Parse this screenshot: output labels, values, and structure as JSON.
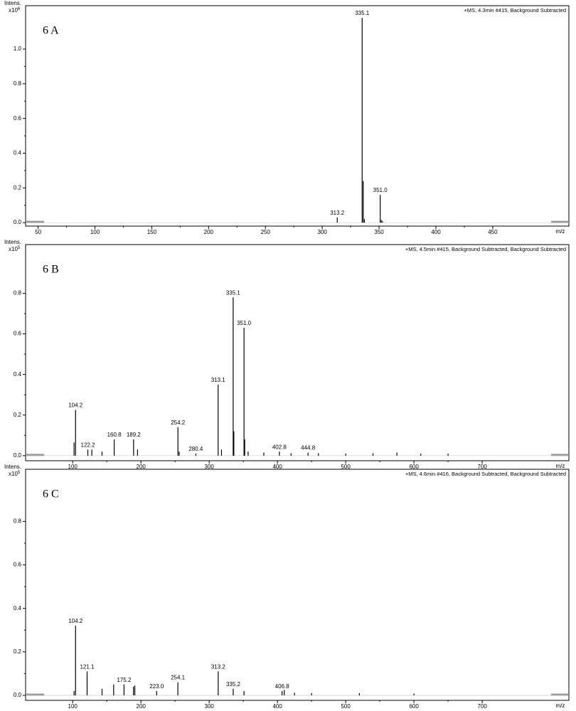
{
  "chart_data": [
    {
      "type": "bar",
      "panel_label": "6 A",
      "header": "+MS, 4.3min #415, Background Subtracted",
      "y_label": "Intens.",
      "y_multiplier": "x10",
      "y_exponent": "6",
      "x_label": "m/z",
      "color": "#000000",
      "xlim": [
        39,
        517
      ],
      "ylim": [
        -0.02,
        1.25
      ],
      "xticks": [
        50,
        100,
        150,
        200,
        250,
        300,
        350,
        400,
        450
      ],
      "yticks": [
        {
          "value": 0,
          "label": "0.0"
        },
        {
          "value": 0.2,
          "label": "0.2"
        },
        {
          "value": 0.4,
          "label": "0.4"
        },
        {
          "value": 0.6,
          "label": "0.6"
        },
        {
          "value": 0.8,
          "label": "0.8"
        },
        {
          "value": 1.0,
          "label": "1.0"
        }
      ],
      "x": [
        313.2,
        335.1,
        336.1,
        337.1,
        351.0,
        352.0,
        353.0
      ],
      "values": [
        0.03,
        1.18,
        0.24,
        0.02,
        0.16,
        0.015,
        0.008
      ],
      "x_labels": [
        "313.2",
        "335.1",
        null,
        null,
        "351.0",
        null,
        null
      ]
    },
    {
      "type": "bar",
      "panel_label": "6 B",
      "header": "+MS, 4.5min #415, Background Subtracted, Background Subtracted",
      "y_label": "Intens.",
      "y_multiplier": "x10",
      "y_exponent": "5",
      "x_label": "m/z",
      "color": "#000000",
      "xlim": [
        31,
        827
      ],
      "ylim": [
        -0.025,
        1.04
      ],
      "xticks": [
        100,
        200,
        300,
        400,
        500,
        600,
        700
      ],
      "yticks": [
        {
          "value": 0,
          "label": "0.0"
        },
        {
          "value": 0.2,
          "label": "0.2"
        },
        {
          "value": 0.4,
          "label": "0.4"
        },
        {
          "value": 0.6,
          "label": "0.6"
        },
        {
          "value": 0.8,
          "label": "0.8"
        }
      ],
      "x": [
        102.0,
        104.2,
        122.2,
        128.0,
        143.0,
        160.8,
        189.2,
        195.0,
        254.2,
        256.0,
        280.4,
        313.1,
        318.0,
        335.1,
        336.1,
        351.0,
        352.0,
        357.0,
        380.0,
        402.8,
        420.0,
        444.8,
        460.0,
        500.0,
        540.0,
        575.0,
        610.0,
        650.0
      ],
      "values": [
        0.065,
        0.225,
        0.03,
        0.03,
        0.02,
        0.08,
        0.08,
        0.03,
        0.14,
        0.02,
        0.01,
        0.35,
        0.03,
        0.78,
        0.12,
        0.63,
        0.08,
        0.02,
        0.015,
        0.02,
        0.012,
        0.015,
        0.012,
        0.01,
        0.012,
        0.015,
        0.01,
        0.01
      ],
      "x_labels": [
        null,
        "104.2",
        "122.2",
        null,
        null,
        "160.8",
        "189.2",
        null,
        "254.2",
        null,
        "280.4",
        "313.1",
        null,
        "335.1",
        null,
        "351.0",
        null,
        null,
        null,
        "402.8",
        null,
        "444.8",
        null,
        null,
        null,
        null,
        null,
        null
      ]
    },
    {
      "type": "bar",
      "panel_label": "6 C",
      "header": "+MS, 4.6min #416, Background Subtracted, Background Subtracted",
      "y_label": "Intens.",
      "y_multiplier": "x10",
      "y_exponent": "5",
      "x_label": "m/z",
      "color": "#000000",
      "xlim": [
        31,
        827
      ],
      "ylim": [
        -0.023,
        1.04
      ],
      "xticks": [
        100,
        200,
        300,
        400,
        500,
        600,
        700
      ],
      "yticks": [
        {
          "value": 0,
          "label": "0.0"
        },
        {
          "value": 0.2,
          "label": "0.2"
        },
        {
          "value": 0.4,
          "label": "0.4"
        },
        {
          "value": 0.6,
          "label": "0.6"
        },
        {
          "value": 0.8,
          "label": "0.8"
        }
      ],
      "x": [
        102.0,
        104.2,
        121.1,
        143.0,
        160.0,
        175.2,
        189.0,
        191.0,
        223.0,
        254.1,
        313.2,
        335.2,
        351.0,
        406.8,
        410.0,
        425.0,
        450.0,
        520.0,
        600.0
      ],
      "values": [
        0.02,
        0.32,
        0.11,
        0.03,
        0.05,
        0.05,
        0.04,
        0.045,
        0.02,
        0.06,
        0.11,
        0.03,
        0.02,
        0.02,
        0.025,
        0.012,
        0.01,
        0.01,
        0.008
      ],
      "x_labels": [
        null,
        "104.2",
        "121.1",
        null,
        null,
        "175.2",
        null,
        null,
        "223.0",
        "254.1",
        "313.2",
        "335.2",
        null,
        "406.8",
        null,
        null,
        null,
        null,
        null
      ]
    }
  ]
}
